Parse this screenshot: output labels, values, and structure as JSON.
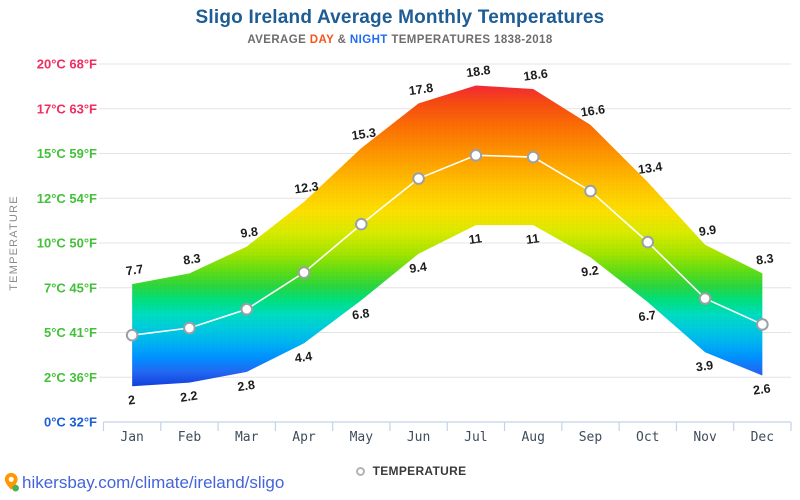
{
  "header": {
    "title": "Sligo Ireland Average Monthly Temperatures",
    "subtitle": {
      "prefix": "AVERAGE",
      "day": "DAY",
      "amp": "&",
      "night": "NIGHT",
      "suffix": "TEMPERATURES 1838-2018"
    }
  },
  "y_axis": {
    "label": "TEMPERATURE",
    "ticks": [
      {
        "label": "20°C 68°F",
        "color": "#ef2d5e"
      },
      {
        "label": "17°C 63°F",
        "color": "#ef2d5e"
      },
      {
        "label": "15°C 59°F",
        "color": "#43c139"
      },
      {
        "label": "12°C 54°F",
        "color": "#43c139"
      },
      {
        "label": "10°C 50°F",
        "color": "#43c139"
      },
      {
        "label": "7°C 45°F",
        "color": "#43c139"
      },
      {
        "label": "5°C 41°F",
        "color": "#43c139"
      },
      {
        "label": "2°C 36°F",
        "color": "#43c139"
      },
      {
        "label": "0°C 32°F",
        "color": "#1a5fd7"
      }
    ]
  },
  "chart_data": {
    "type": "area",
    "title": "Sligo Ireland Average Monthly Temperatures",
    "subtitle": "AVERAGE DAY & NIGHT TEMPERATURES 1838-2018",
    "categories": [
      "Jan",
      "Feb",
      "Mar",
      "Apr",
      "May",
      "Jun",
      "Jul",
      "Aug",
      "Sep",
      "Oct",
      "Nov",
      "Dec"
    ],
    "series": [
      {
        "name": "DAY",
        "values": [
          7.7,
          8.3,
          9.8,
          12.3,
          15.3,
          17.8,
          18.8,
          18.6,
          16.6,
          13.4,
          9.9,
          8.3
        ]
      },
      {
        "name": "NIGHT",
        "values": [
          2,
          2.2,
          2.8,
          4.4,
          6.8,
          9.4,
          11,
          11,
          9.2,
          6.7,
          3.9,
          2.6
        ]
      }
    ],
    "ylabel": "TEMPERATURE",
    "xlabel": "",
    "ylim": [
      0,
      20
    ],
    "y_tick_values": [
      20,
      17,
      15,
      12,
      10,
      7,
      5,
      2,
      0
    ],
    "grid": true,
    "legend_position": "bottom",
    "band_gradient_stops": [
      [
        0.0,
        "#f2104c"
      ],
      [
        0.05,
        "#f32040"
      ],
      [
        0.1,
        "#f54616"
      ],
      [
        0.17,
        "#fa6c04"
      ],
      [
        0.25,
        "#fd9500"
      ],
      [
        0.33,
        "#ffbe00"
      ],
      [
        0.41,
        "#fcdf00"
      ],
      [
        0.47,
        "#d9ea00"
      ],
      [
        0.53,
        "#a3e400"
      ],
      [
        0.58,
        "#5edc16"
      ],
      [
        0.62,
        "#2bd53f"
      ],
      [
        0.66,
        "#00df7e"
      ],
      [
        0.7,
        "#00dcc0"
      ],
      [
        0.74,
        "#00cade"
      ],
      [
        0.78,
        "#00b2f2"
      ],
      [
        0.82,
        "#0090ff"
      ],
      [
        0.86,
        "#2268f2"
      ],
      [
        0.91,
        "#0e35d8"
      ],
      [
        1.0,
        "#0820c0"
      ]
    ],
    "avg_line_color": "#ffffff",
    "marker": {
      "fill": "#ffffff",
      "stroke": "#9aa0a6"
    },
    "gridline_color": "#e4e4e4",
    "axis_border_color": "#c3d3e8"
  },
  "legend": {
    "label": "TEMPERATURE"
  },
  "footer": {
    "link": "hikersbay.com/climate/ireland/sligo"
  },
  "colors": {
    "title": "#1d5c94",
    "subtitle_day": "#f4561d",
    "subtitle_night": "#1e6ef5",
    "footer_link": "#4464d9",
    "pin_orange": "#ff9800",
    "pin_green": "#4caf50"
  }
}
